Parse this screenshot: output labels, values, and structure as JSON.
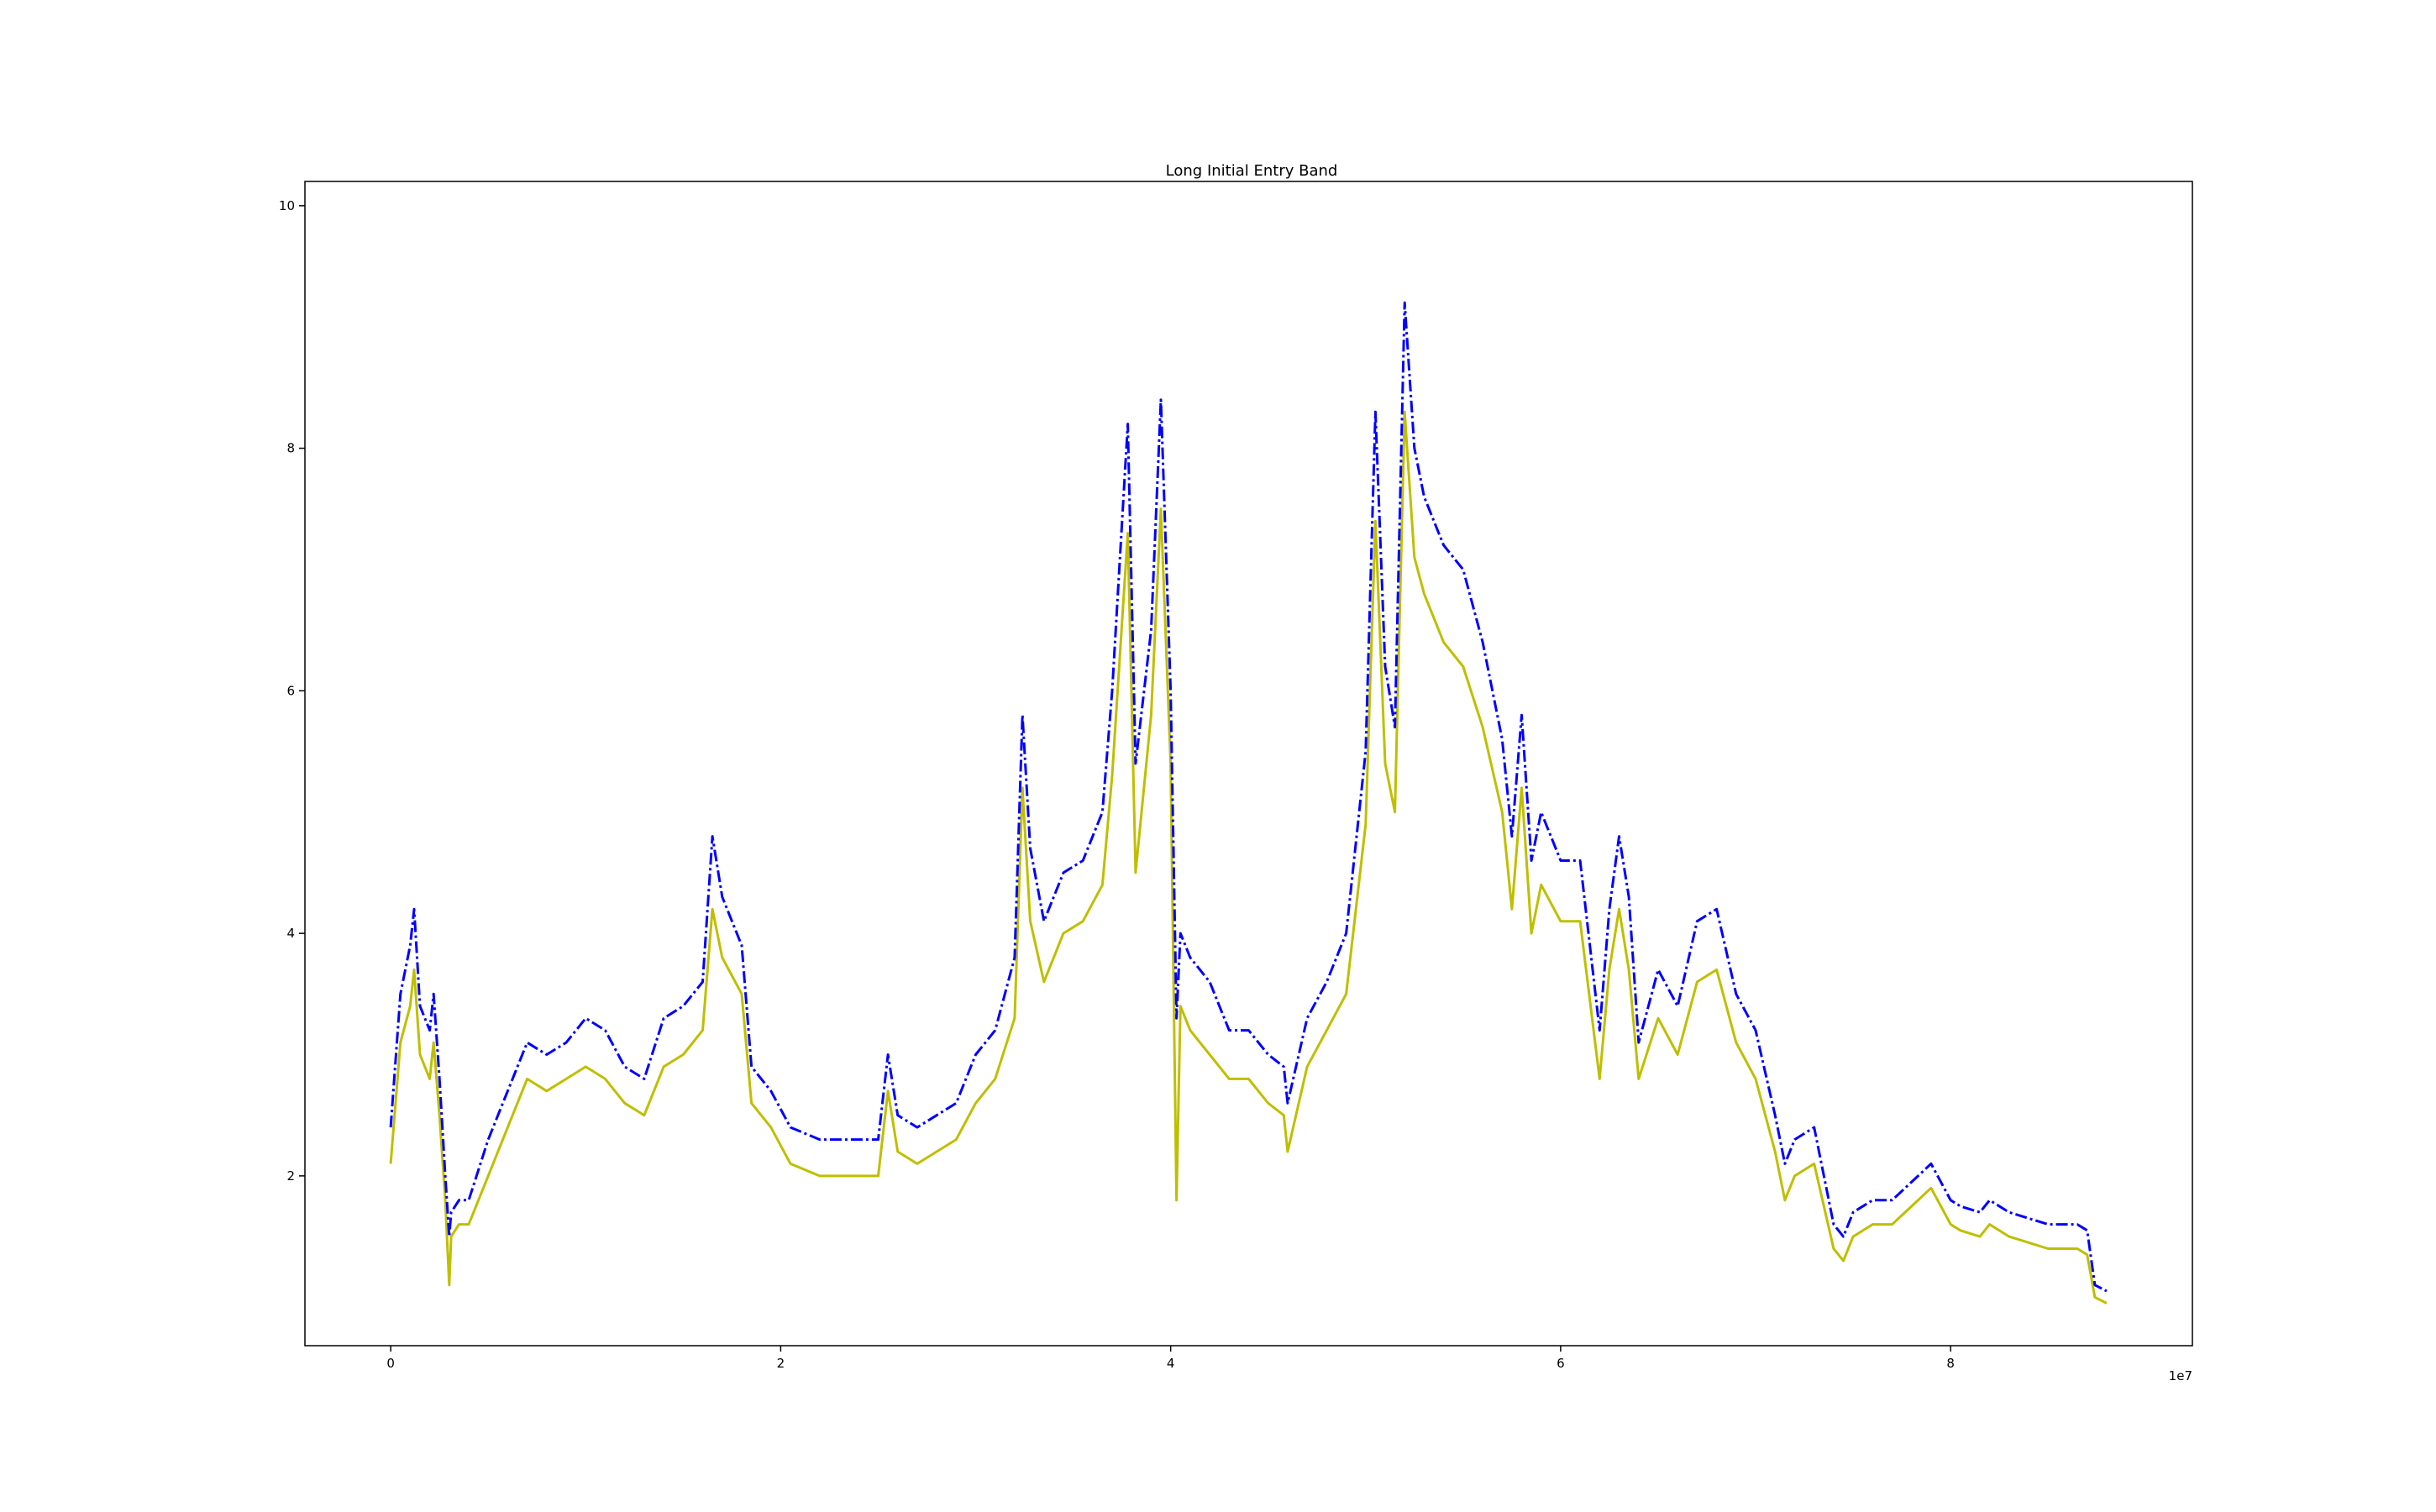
{
  "chart_data": {
    "type": "line",
    "title": "Long Initial Entry Band",
    "xlabel": "",
    "ylabel": "",
    "x_offset_text": "1e7",
    "xlim": [
      -0.44,
      9.24
    ],
    "ylim": [
      0.6,
      10.2
    ],
    "xticks": [
      0,
      2,
      4,
      6,
      8
    ],
    "yticks": [
      2,
      4,
      6,
      8,
      10
    ],
    "grid": false,
    "legend": "none",
    "colors": {
      "upper": "#0000ff",
      "lower": "#bfbf00"
    },
    "series": [
      {
        "color": "#0000ff",
        "style": "dash-dot",
        "x": [
          0.0,
          0.05,
          0.1,
          0.12,
          0.15,
          0.2,
          0.22,
          0.25,
          0.28,
          0.3,
          0.31,
          0.35,
          0.4,
          0.5,
          0.6,
          0.7,
          0.8,
          0.9,
          1.0,
          1.1,
          1.2,
          1.3,
          1.4,
          1.5,
          1.6,
          1.65,
          1.7,
          1.8,
          1.85,
          1.95,
          2.05,
          2.2,
          2.35,
          2.5,
          2.55,
          2.6,
          2.7,
          2.8,
          2.9,
          3.0,
          3.1,
          3.2,
          3.24,
          3.28,
          3.35,
          3.45,
          3.55,
          3.65,
          3.7,
          3.78,
          3.82,
          3.9,
          3.95,
          4.0,
          4.03,
          4.05,
          4.1,
          4.2,
          4.3,
          4.4,
          4.5,
          4.58,
          4.6,
          4.7,
          4.8,
          4.9,
          5.0,
          5.05,
          5.1,
          5.15,
          5.2,
          5.25,
          5.3,
          5.4,
          5.5,
          5.6,
          5.7,
          5.75,
          5.8,
          5.85,
          5.9,
          6.0,
          6.1,
          6.2,
          6.25,
          6.3,
          6.35,
          6.4,
          6.5,
          6.6,
          6.7,
          6.8,
          6.9,
          7.0,
          7.1,
          7.15,
          7.2,
          7.3,
          7.4,
          7.45,
          7.5,
          7.6,
          7.7,
          7.8,
          7.9,
          8.0,
          8.05,
          8.15,
          8.2,
          8.3,
          8.4,
          8.5,
          8.6,
          8.65,
          8.7,
          8.74,
          8.8
        ],
        "y": [
          2.4,
          3.5,
          3.9,
          4.2,
          3.4,
          3.2,
          3.5,
          2.8,
          2.0,
          1.5,
          1.7,
          1.8,
          1.8,
          2.3,
          2.7,
          3.1,
          3.0,
          3.1,
          3.3,
          3.2,
          2.9,
          2.8,
          3.3,
          3.4,
          3.6,
          4.8,
          4.3,
          3.9,
          2.9,
          2.7,
          2.4,
          2.3,
          2.3,
          2.3,
          3.0,
          2.5,
          2.4,
          2.5,
          2.6,
          3.0,
          3.2,
          3.8,
          5.8,
          4.7,
          4.1,
          4.5,
          4.6,
          5.0,
          6.0,
          8.2,
          5.4,
          6.5,
          8.4,
          6.0,
          3.3,
          4.0,
          3.8,
          3.6,
          3.2,
          3.2,
          3.0,
          2.9,
          2.6,
          3.3,
          3.6,
          4.0,
          5.5,
          8.3,
          6.2,
          5.7,
          9.2,
          8.0,
          7.6,
          7.2,
          7.0,
          6.4,
          5.6,
          4.8,
          5.8,
          4.6,
          5.0,
          4.6,
          4.6,
          3.2,
          4.2,
          4.8,
          4.3,
          3.1,
          3.7,
          3.4,
          4.1,
          4.2,
          3.5,
          3.2,
          2.5,
          2.1,
          2.3,
          2.4,
          1.6,
          1.5,
          1.7,
          1.8,
          1.8,
          1.95,
          2.1,
          1.8,
          1.75,
          1.7,
          1.8,
          1.7,
          1.65,
          1.6,
          1.6,
          1.6,
          1.55,
          1.1,
          1.05
        ]
      },
      {
        "color": "#bfbf00",
        "style": "solid",
        "x": [
          0.0,
          0.05,
          0.1,
          0.12,
          0.15,
          0.2,
          0.22,
          0.25,
          0.28,
          0.3,
          0.31,
          0.35,
          0.4,
          0.5,
          0.6,
          0.7,
          0.8,
          0.9,
          1.0,
          1.1,
          1.2,
          1.3,
          1.4,
          1.5,
          1.6,
          1.65,
          1.7,
          1.8,
          1.85,
          1.95,
          2.05,
          2.2,
          2.35,
          2.5,
          2.55,
          2.6,
          2.7,
          2.8,
          2.9,
          3.0,
          3.1,
          3.2,
          3.24,
          3.28,
          3.35,
          3.45,
          3.55,
          3.65,
          3.7,
          3.78,
          3.82,
          3.9,
          3.95,
          4.0,
          4.03,
          4.05,
          4.1,
          4.2,
          4.3,
          4.4,
          4.5,
          4.58,
          4.6,
          4.7,
          4.8,
          4.9,
          5.0,
          5.05,
          5.1,
          5.15,
          5.2,
          5.25,
          5.3,
          5.4,
          5.5,
          5.6,
          5.7,
          5.75,
          5.8,
          5.85,
          5.9,
          6.0,
          6.1,
          6.2,
          6.25,
          6.3,
          6.35,
          6.4,
          6.5,
          6.6,
          6.7,
          6.8,
          6.9,
          7.0,
          7.1,
          7.15,
          7.2,
          7.3,
          7.4,
          7.45,
          7.5,
          7.6,
          7.7,
          7.8,
          7.9,
          8.0,
          8.05,
          8.15,
          8.2,
          8.3,
          8.4,
          8.5,
          8.6,
          8.65,
          8.7,
          8.74,
          8.8
        ],
        "y": [
          2.1,
          3.1,
          3.4,
          3.7,
          3.0,
          2.8,
          3.1,
          2.5,
          1.8,
          1.1,
          1.5,
          1.6,
          1.6,
          2.0,
          2.4,
          2.8,
          2.7,
          2.8,
          2.9,
          2.8,
          2.6,
          2.5,
          2.9,
          3.0,
          3.2,
          4.2,
          3.8,
          3.5,
          2.6,
          2.4,
          2.1,
          2.0,
          2.0,
          2.0,
          2.7,
          2.2,
          2.1,
          2.2,
          2.3,
          2.6,
          2.8,
          3.3,
          5.2,
          4.1,
          3.6,
          4.0,
          4.1,
          4.4,
          5.3,
          7.3,
          4.5,
          5.8,
          7.5,
          5.4,
          1.8,
          3.4,
          3.2,
          3.0,
          2.8,
          2.8,
          2.6,
          2.5,
          2.2,
          2.9,
          3.2,
          3.5,
          4.9,
          7.4,
          5.4,
          5.0,
          8.3,
          7.1,
          6.8,
          6.4,
          6.2,
          5.7,
          5.0,
          4.2,
          5.2,
          4.0,
          4.4,
          4.1,
          4.1,
          2.8,
          3.7,
          4.2,
          3.7,
          2.8,
          3.3,
          3.0,
          3.6,
          3.7,
          3.1,
          2.8,
          2.2,
          1.8,
          2.0,
          2.1,
          1.4,
          1.3,
          1.5,
          1.6,
          1.6,
          1.75,
          1.9,
          1.6,
          1.55,
          1.5,
          1.6,
          1.5,
          1.45,
          1.4,
          1.4,
          1.4,
          1.35,
          1.0,
          0.95
        ]
      }
    ]
  }
}
